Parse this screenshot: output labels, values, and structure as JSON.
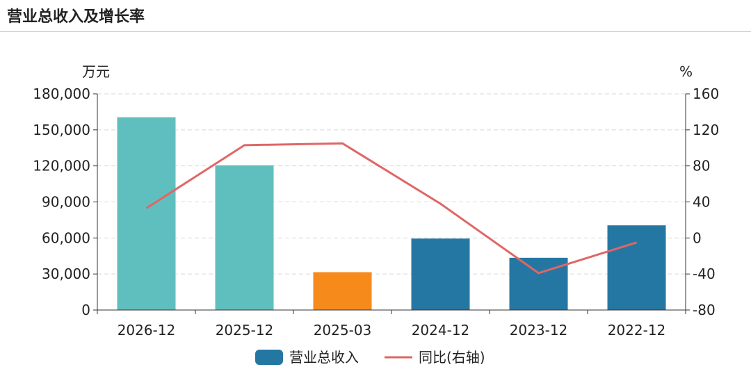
{
  "header": {
    "title": "营业总收入及增长率"
  },
  "chart_data": {
    "type": "bar",
    "categories": [
      "2026-12",
      "2025-12",
      "2025-03",
      "2024-12",
      "2023-12",
      "2022-12"
    ],
    "series": [
      {
        "name": "营业总收入",
        "kind": "bar",
        "axis": "left",
        "values": [
          160500,
          120500,
          31500,
          59500,
          43500,
          70500
        ],
        "colors": [
          "#5fbfbf",
          "#5fbfbf",
          "#f68a1b",
          "#2577a3",
          "#2577a3",
          "#2577a3"
        ]
      },
      {
        "name": "同比(右轴)",
        "kind": "line",
        "axis": "right",
        "values": [
          33,
          103,
          105,
          38,
          -39,
          -5
        ],
        "color": "#e06666"
      }
    ],
    "y_left": {
      "unit": "万元",
      "ylim": [
        0,
        180000
      ],
      "ticks": [
        0,
        30000,
        60000,
        90000,
        120000,
        150000,
        180000
      ],
      "tick_labels": [
        "0",
        "30,000",
        "60,000",
        "90,000",
        "120,000",
        "150,000",
        "180,000"
      ]
    },
    "y_right": {
      "unit": "%",
      "ylim": [
        -80,
        160
      ],
      "ticks": [
        -80,
        -40,
        0,
        40,
        80,
        120,
        160
      ],
      "tick_labels": [
        "-80",
        "-40",
        "0",
        "40",
        "80",
        "120",
        "160"
      ]
    },
    "legend": {
      "position": "bottom-center",
      "entries": [
        {
          "label": "营业总收入",
          "color": "#2577a3",
          "type": "bar"
        },
        {
          "label": "同比(右轴)",
          "color": "#e06666",
          "type": "line"
        }
      ]
    },
    "grid": true
  }
}
